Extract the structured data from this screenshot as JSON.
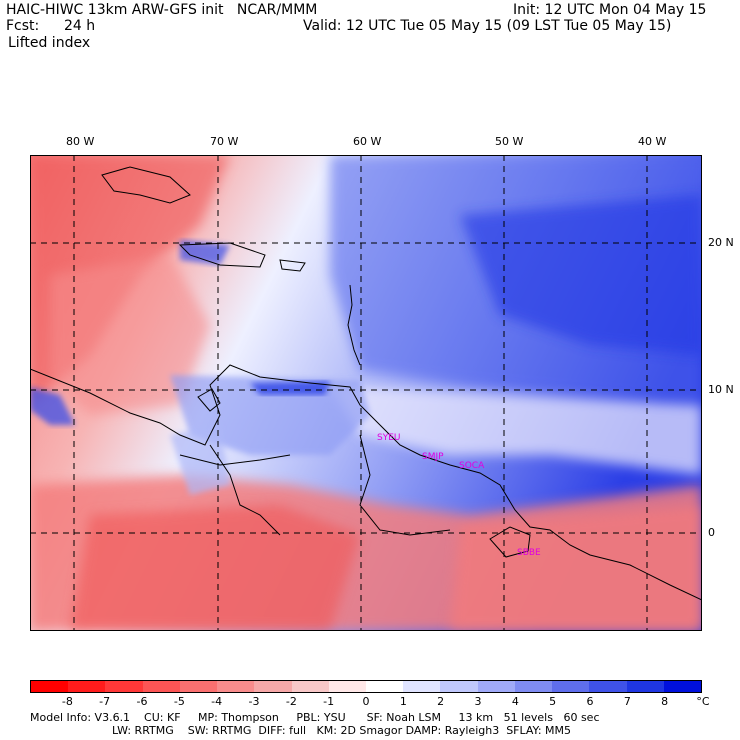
{
  "header": {
    "title": "HAIC-HIWC 13km ARW-GFS init   NCAR/MMM",
    "init": "Init: 12 UTC Mon 04 May 15",
    "fcst_label": "Fcst:",
    "fcst_value": "24 h",
    "valid": "Valid: 12 UTC Tue 05 May 15 (09 LST Tue 05 May 15)",
    "field": "Lifted index"
  },
  "map": {
    "lon_ticks": [
      "80 W",
      "70 W",
      "60 W",
      "50 W",
      "40 W"
    ],
    "lat_ticks": [
      "20 N",
      "10 N",
      "0"
    ],
    "stations": [
      "SYEU",
      "SMJP",
      "SOCA",
      "SBBE"
    ],
    "station_color": "#e000e0"
  },
  "colorbar": {
    "labels": [
      "-8",
      "-7",
      "-6",
      "-5",
      "-4",
      "-3",
      "-2",
      "-1",
      "0",
      "1",
      "2",
      "3",
      "4",
      "5",
      "6",
      "7",
      "8"
    ],
    "unit": "°C",
    "colors": [
      "#ff0000",
      "#ff1c1c",
      "#ff3838",
      "#fc5555",
      "#fa7070",
      "#f88c8c",
      "#f6a8a8",
      "#f8c8c8",
      "#ffe8e8",
      "#ffffff",
      "#e0e4ff",
      "#c0c8fc",
      "#a0aaf8",
      "#7f8cf2",
      "#5f6eec",
      "#3f52e8",
      "#1f36e2",
      "#0010dd"
    ]
  },
  "footer": {
    "line1": "Model Info: V3.6.1    CU: KF     MP: Thompson     PBL: YSU      SF: Noah LSM     13 km   51 levels   60 sec",
    "line2": "LW: RRTMG    SW: RRTMG  DIFF: full   KM: 2D Smagor DAMP: Rayleigh3  SFLAY: MM5"
  }
}
